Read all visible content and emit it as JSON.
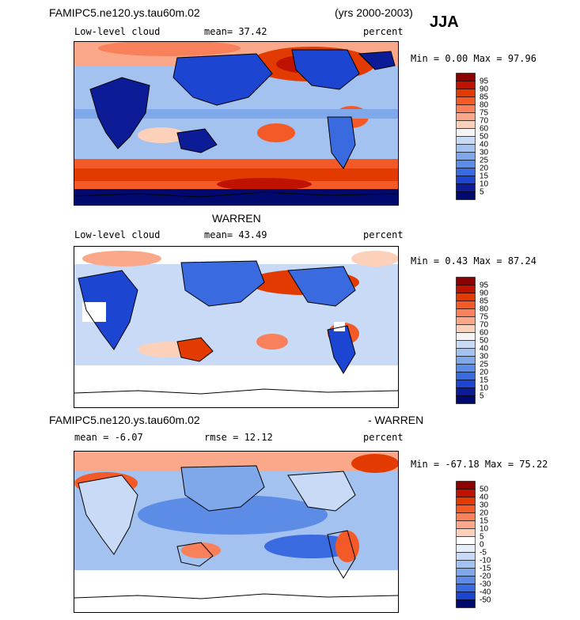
{
  "header": {
    "model_title": "FAMIPC5.ne120.ys.tau60m.02",
    "years": "(yrs 2000-2003)",
    "season": "JJA"
  },
  "panels": [
    {
      "title": "",
      "left_label": "Low-level cloud",
      "stat_label": "mean=  37.42",
      "units": "percent",
      "minmax": "Min =   0.00 Max =  97.96",
      "ticks": [
        "95",
        "90",
        "85",
        "80",
        "75",
        "70",
        "60",
        "50",
        "40",
        "30",
        "25",
        "20",
        "15",
        "10",
        "5"
      ],
      "colors": [
        "#8e0000",
        "#c01200",
        "#e23a00",
        "#f45a28",
        "#f8805a",
        "#fba88a",
        "#fdd0ba",
        "#f4f4f4",
        "#c8daf6",
        "#a4c2f0",
        "#7ea8ea",
        "#5c8ce6",
        "#3a6ae0",
        "#1c46d2",
        "#0c1c96",
        "#000a6e"
      ]
    },
    {
      "title": "WARREN",
      "left_label": "Low-level cloud",
      "stat_label": "mean=  43.49",
      "units": "percent",
      "minmax": "Min =   0.43 Max =  87.24",
      "ticks": [
        "95",
        "90",
        "85",
        "80",
        "75",
        "70",
        "60",
        "50",
        "40",
        "30",
        "25",
        "20",
        "15",
        "10",
        "5"
      ],
      "colors": [
        "#8e0000",
        "#c01200",
        "#e23a00",
        "#f45a28",
        "#f8805a",
        "#fba88a",
        "#fdd0ba",
        "#f4f4f4",
        "#c8daf6",
        "#a4c2f0",
        "#7ea8ea",
        "#5c8ce6",
        "#3a6ae0",
        "#1c46d2",
        "#0c1c96",
        "#000a6e"
      ]
    },
    {
      "title_left": "FAMIPC5.ne120.ys.tau60m.02",
      "title_right": "- WARREN",
      "left_label": "mean =  -6.07",
      "stat_label": "rmse =  12.12",
      "units": "percent",
      "minmax": "Min = -67.18 Max =  75.22",
      "ticks": [
        "50",
        "40",
        "30",
        "20",
        "15",
        "10",
        "5",
        "0",
        "-5",
        "-10",
        "-15",
        "-20",
        "-30",
        "-40",
        "-50"
      ],
      "colors": [
        "#8e0000",
        "#c01200",
        "#e23a00",
        "#f45a28",
        "#f8805a",
        "#fba88a",
        "#fdd0ba",
        "#ffffff",
        "#e6eefa",
        "#c8daf6",
        "#a4c2f0",
        "#7ea8ea",
        "#5c8ce6",
        "#3a6ae0",
        "#1c46d2",
        "#000a6e"
      ]
    }
  ]
}
